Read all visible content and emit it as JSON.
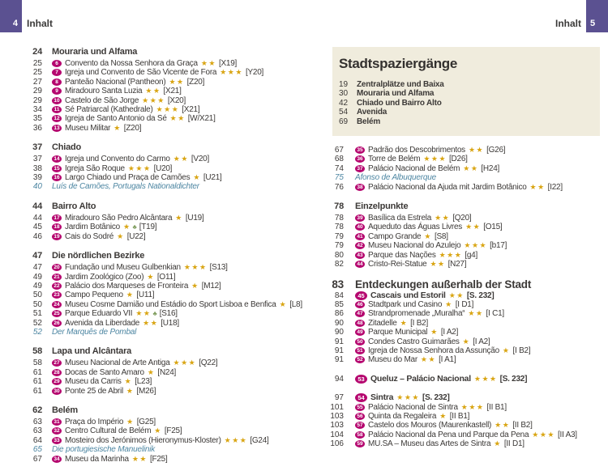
{
  "page": {
    "left_folio": "4",
    "left_header": "Inhalt",
    "right_header": "Inhalt",
    "right_folio": "5"
  },
  "colors": {
    "folio_purple": "#5b5191",
    "badge_magenta": "#b5076f",
    "star_gold": "#d9a513",
    "feature_blue": "#4d86a2",
    "box_beige": "#f0ecdd",
    "text_dark": "#3c3937"
  },
  "icons": {
    "park-icon": "♣"
  },
  "left_column": {
    "blocks": [
      {
        "heading": {
          "page": "24",
          "title": "Mouraria und Alfama"
        },
        "rows": [
          {
            "type": "entry",
            "page": "25",
            "badge": "6",
            "title": "Convento da Nossa Senhora da Graça",
            "stars": 2,
            "ref": "[X19]"
          },
          {
            "type": "entry",
            "page": "25",
            "badge": "7",
            "title": "Igreja und Convento de São Vicente de Fora",
            "stars": 3,
            "ref": "[Y20]"
          },
          {
            "type": "entry",
            "page": "27",
            "badge": "8",
            "title": "Panteão Nacional (Pantheon)",
            "stars": 2,
            "ref": "[Z20]"
          },
          {
            "type": "entry",
            "page": "29",
            "badge": "9",
            "title": "Miradouro Santa Luzia",
            "stars": 2,
            "ref": "[X21]"
          },
          {
            "type": "entry",
            "page": "29",
            "badge": "10",
            "title": "Castelo de São Jorge",
            "stars": 3,
            "ref": "[X20]"
          },
          {
            "type": "entry",
            "page": "34",
            "badge": "11",
            "title": "Sé Patriarcal (Kathedrale)",
            "stars": 3,
            "ref": "[X21]"
          },
          {
            "type": "entry",
            "page": "35",
            "badge": "12",
            "title": "Igreja de Santo Antonio da Sé",
            "stars": 2,
            "ref": "[W/X21]"
          },
          {
            "type": "entry",
            "page": "36",
            "badge": "13",
            "title": "Museu Militar",
            "stars": 1,
            "ref": "[Z20]"
          }
        ]
      },
      {
        "heading": {
          "page": "37",
          "title": "Chiado"
        },
        "rows": [
          {
            "type": "entry",
            "page": "37",
            "badge": "14",
            "title": "Igreja und Convento do Carmo",
            "stars": 2,
            "ref": "[V20]"
          },
          {
            "type": "entry",
            "page": "38",
            "badge": "15",
            "title": "Igreja São Roque",
            "stars": 3,
            "ref": "[U20]"
          },
          {
            "type": "entry",
            "page": "39",
            "badge": "16",
            "title": "Largo Chiado und Praça de Camões",
            "stars": 1,
            "ref": "[U21]"
          },
          {
            "type": "feature",
            "page": "40",
            "title": "Luís de Camões, Portugals Nationaldichter"
          }
        ]
      },
      {
        "heading": {
          "page": "44",
          "title": "Bairro Alto"
        },
        "rows": [
          {
            "type": "entry",
            "page": "44",
            "badge": "17",
            "title": "Miradouro São Pedro Alcântara",
            "stars": 1,
            "ref": "[U19]"
          },
          {
            "type": "entry",
            "page": "45",
            "badge": "18",
            "title": "Jardim Botânico",
            "stars": 1,
            "icon": "park-icon",
            "ref": "[T19]"
          },
          {
            "type": "entry",
            "page": "46",
            "badge": "19",
            "title": "Cais do Sodré",
            "stars": 1,
            "ref": "[U22]"
          }
        ]
      },
      {
        "heading": {
          "page": "47",
          "title": "Die nördlichen Bezirke"
        },
        "rows": [
          {
            "type": "entry",
            "page": "47",
            "badge": "20",
            "title": "Fundação und Museu Gulbenkian",
            "stars": 3,
            "ref": "[S13]"
          },
          {
            "type": "entry",
            "page": "49",
            "badge": "21",
            "title": "Jardim Zoológico (Zoo)",
            "stars": 1,
            "ref": "[O11]"
          },
          {
            "type": "entry",
            "page": "49",
            "badge": "22",
            "title": "Palácio dos Marqueses de Fronteira",
            "stars": 1,
            "ref": "[M12]"
          },
          {
            "type": "entry",
            "page": "50",
            "badge": "23",
            "title": "Campo Pequeno",
            "stars": 1,
            "ref": "[U11]"
          },
          {
            "type": "entry",
            "page": "50",
            "badge": "24",
            "title": "Museu Cosme Damião und Estádio do Sport Lisboa e Benfica",
            "stars": 1,
            "ref": "[L8]"
          },
          {
            "type": "entry",
            "page": "51",
            "badge": "25",
            "title": "Parque Eduardo VII",
            "stars": 2,
            "icon": "park-icon",
            "ref": "[S16]"
          },
          {
            "type": "entry",
            "page": "52",
            "badge": "26",
            "title": "Avenida da Liberdade",
            "stars": 2,
            "ref": "[U18]"
          },
          {
            "type": "feature",
            "page": "52",
            "title": "Der Marquês de Pombal"
          }
        ]
      },
      {
        "heading": {
          "page": "58",
          "title": "Lapa und Alcântara"
        },
        "rows": [
          {
            "type": "entry",
            "page": "58",
            "badge": "27",
            "title": "Museu Nacional de Arte Antiga",
            "stars": 3,
            "ref": "[Q22]"
          },
          {
            "type": "entry",
            "page": "61",
            "badge": "28",
            "title": "Docas de Santo Amaro",
            "stars": 1,
            "ref": "[N24]"
          },
          {
            "type": "entry",
            "page": "61",
            "badge": "29",
            "title": "Museu da Carris",
            "stars": 1,
            "ref": "[L23]"
          },
          {
            "type": "entry",
            "page": "61",
            "badge": "30",
            "title": "Ponte 25 de Abril",
            "stars": 1,
            "ref": "[M26]"
          }
        ]
      },
      {
        "heading": {
          "page": "62",
          "title": "Belém"
        },
        "rows": [
          {
            "type": "entry",
            "page": "63",
            "badge": "31",
            "title": "Praça do Império",
            "stars": 1,
            "ref": "[G25]"
          },
          {
            "type": "entry",
            "page": "63",
            "badge": "32",
            "title": "Centro Cultural de Belém",
            "stars": 1,
            "ref": "[F25]"
          },
          {
            "type": "entry",
            "page": "64",
            "badge": "33",
            "title": "Mosteiro dos Jerónimos (Hieronymus-Kloster)",
            "stars": 3,
            "ref": "[G24]"
          },
          {
            "type": "feature",
            "page": "65",
            "title": "Die portugiesische Manuelinik"
          },
          {
            "type": "entry",
            "page": "67",
            "badge": "34",
            "title": "Museu da Marinha",
            "stars": 2,
            "ref": "[F25]"
          }
        ]
      }
    ]
  },
  "right_column": {
    "walks_box": {
      "title": "Stadtspaziergänge",
      "rows": [
        {
          "page": "19",
          "title": "Zentralplätze und Baixa"
        },
        {
          "page": "30",
          "title": "Mouraria und Alfama"
        },
        {
          "page": "42",
          "title": "Chiado und Bairro Alto"
        },
        {
          "page": "54",
          "title": "Avenida"
        },
        {
          "page": "69",
          "title": "Belém"
        }
      ]
    },
    "blocks": [
      {
        "rows": [
          {
            "type": "entry",
            "page": "67",
            "badge": "35",
            "title": "Padrão dos Descobrimentos",
            "stars": 2,
            "ref": "[G26]"
          },
          {
            "type": "entry",
            "page": "68",
            "badge": "36",
            "title": "Torre de Belém",
            "stars": 3,
            "ref": "[D26]"
          },
          {
            "type": "entry",
            "page": "74",
            "badge": "37",
            "title": "Palácio Nacional de Belém",
            "stars": 2,
            "ref": "[H24]"
          },
          {
            "type": "feature",
            "page": "75",
            "title": "Afonso de Albuquerque"
          },
          {
            "type": "entry",
            "page": "76",
            "badge": "38",
            "title": "Palácio Nacional da Ajuda mit Jardim Botânico",
            "stars": 2,
            "ref": "[I22]"
          }
        ]
      },
      {
        "heading": {
          "page": "78",
          "title": "Einzelpunkte"
        },
        "rows": [
          {
            "type": "entry",
            "page": "78",
            "badge": "39",
            "title": "Basílica da Estrela",
            "stars": 2,
            "ref": "[Q20]"
          },
          {
            "type": "entry",
            "page": "78",
            "badge": "40",
            "title": "Aqueduto das Águas Livres",
            "stars": 2,
            "ref": "[O15]"
          },
          {
            "type": "entry",
            "page": "79",
            "badge": "41",
            "title": "Campo Grande",
            "stars": 1,
            "ref": "[S8]"
          },
          {
            "type": "entry",
            "page": "79",
            "badge": "42",
            "title": "Museu Nacional do Azulejo",
            "stars": 3,
            "ref": "[b17]"
          },
          {
            "type": "entry",
            "page": "80",
            "badge": "43",
            "title": "Parque das Nações",
            "stars": 3,
            "ref": "[g4]"
          },
          {
            "type": "entry",
            "page": "82",
            "badge": "44",
            "title": "Cristo-Rei-Statue",
            "stars": 2,
            "ref": "[N27]"
          }
        ]
      },
      {
        "heading": {
          "page": "83",
          "title": "Entdeckungen außerhalb der Stadt",
          "large": true
        },
        "rows": [
          {
            "type": "entry",
            "page": "84",
            "badge": "45",
            "title": "Cascais und Estoril",
            "stars": 2,
            "ref": "[S. 232]",
            "bold": true
          },
          {
            "type": "entry",
            "page": "85",
            "badge": "46",
            "title": "Stadtpark und Casino",
            "stars": 1,
            "ref": "[I D1]"
          },
          {
            "type": "entry",
            "page": "86",
            "badge": "47",
            "title": "Strandpromenade „Muralha“",
            "stars": 2,
            "ref": "[I C1]"
          },
          {
            "type": "entry",
            "page": "90",
            "badge": "48",
            "title": "Zitadelle",
            "stars": 1,
            "ref": "[I B2]"
          },
          {
            "type": "entry",
            "page": "90",
            "badge": "49",
            "title": "Parque Municipal",
            "stars": 1,
            "ref": "[I A2]"
          },
          {
            "type": "entry",
            "page": "91",
            "badge": "50",
            "title": "Condes Castro Guimarães",
            "stars": 1,
            "ref": "[I A2]"
          },
          {
            "type": "entry",
            "page": "91",
            "badge": "51",
            "title": "Igreja de Nossa Senhora da Assunção",
            "stars": 1,
            "ref": "[I B2]"
          },
          {
            "type": "entry",
            "page": "91",
            "badge": "52",
            "title": "Museu do Mar",
            "stars": 2,
            "ref": "[I A1]"
          }
        ]
      },
      {
        "rows": [
          {
            "type": "entry",
            "page": "94",
            "badge": "53",
            "title": "Queluz – Palácio Nacional",
            "stars": 3,
            "ref": "[S. 232]",
            "bold": true
          }
        ]
      },
      {
        "rows": [
          {
            "type": "entry",
            "page": "97",
            "badge": "54",
            "title": "Sintra",
            "stars": 3,
            "ref": "[S. 232]",
            "bold": true
          },
          {
            "type": "entry",
            "page": "101",
            "badge": "55",
            "title": "Palácio Nacional de Sintra",
            "stars": 3,
            "ref": "[II B1]"
          },
          {
            "type": "entry",
            "page": "103",
            "badge": "56",
            "title": "Quinta da Regaleira",
            "stars": 1,
            "ref": "[II B1]"
          },
          {
            "type": "entry",
            "page": "103",
            "badge": "57",
            "title": "Castelo dos Mouros (Maurenkastell)",
            "stars": 2,
            "ref": "[II B2]"
          },
          {
            "type": "entry",
            "page": "104",
            "badge": "58",
            "title": "Palácio Nacional da Pena und Parque da Pena",
            "stars": 3,
            "ref": "[II A3]"
          },
          {
            "type": "entry",
            "page": "106",
            "badge": "59",
            "title": "MU.SA – Museu das Artes de Sintra",
            "stars": 1,
            "ref": "[II D1]"
          }
        ]
      }
    ]
  }
}
